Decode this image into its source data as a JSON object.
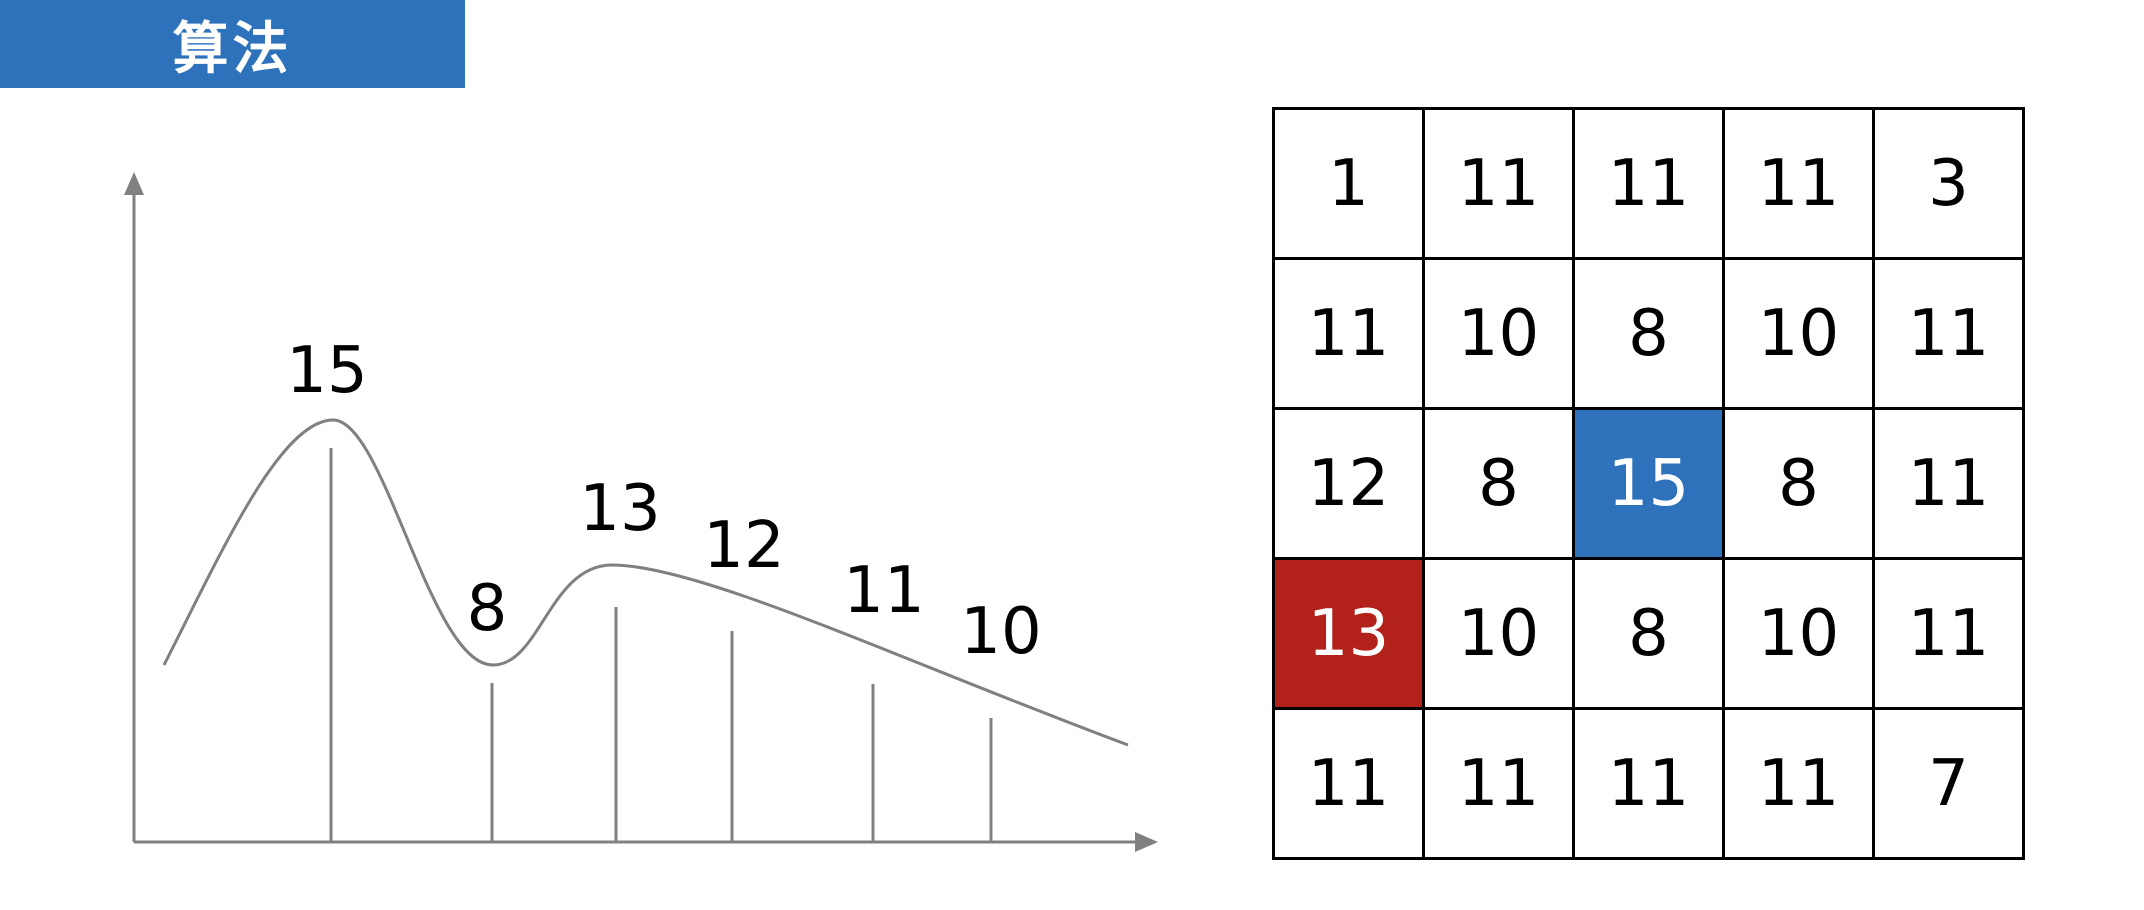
{
  "header": {
    "title": "算法",
    "color": "#2e72bc"
  },
  "colors": {
    "accent_blue": "#2e72bc",
    "accent_red": "#b3221a",
    "line_gray": "#808080"
  },
  "curve": {
    "labels": [
      "15",
      "8",
      "13",
      "12",
      "11",
      "10"
    ]
  },
  "grid": {
    "rows": [
      [
        "1",
        "11",
        "11",
        "11",
        "3"
      ],
      [
        "11",
        "10",
        "8",
        "10",
        "11"
      ],
      [
        "12",
        "8",
        "15",
        "8",
        "11"
      ],
      [
        "13",
        "10",
        "8",
        "10",
        "11"
      ],
      [
        "11",
        "11",
        "11",
        "11",
        "7"
      ]
    ],
    "highlight_blue": {
      "row": 2,
      "col": 2
    },
    "highlight_red": {
      "row": 3,
      "col": 0
    }
  }
}
